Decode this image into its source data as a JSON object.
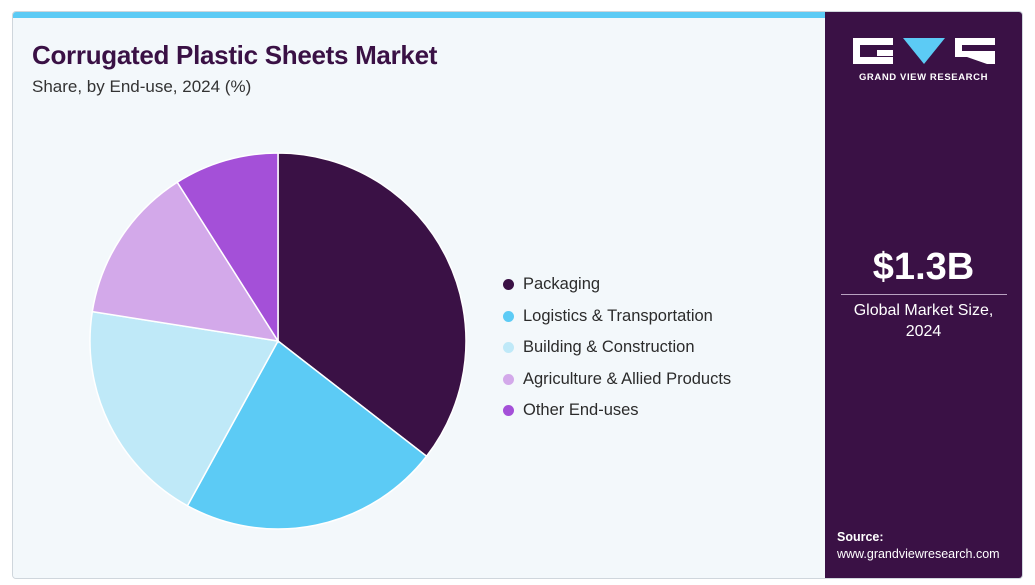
{
  "header": {
    "title": "Corrugated Plastic Sheets Market",
    "subtitle": "Share, by End-use, 2024 (%)"
  },
  "brand": {
    "name": "GRAND VIEW RESEARCH",
    "accent_color": "#5ccbf5",
    "panel_color": "#3a1145"
  },
  "summary": {
    "value": "$1.3B",
    "label_line1": "Global Market Size,",
    "label_line2": "2024"
  },
  "source": {
    "label": "Source:",
    "url": "www.grandviewresearch.com"
  },
  "chart_data": {
    "type": "pie",
    "title": "Corrugated Plastic Sheets Market",
    "subtitle": "Share, by End-use, 2024 (%)",
    "categories": [
      "Packaging",
      "Logistics & Transportation",
      "Building & Construction",
      "Agriculture & Allied Products",
      "Other End-uses"
    ],
    "values": [
      35.5,
      22.5,
      19.5,
      13.5,
      9.0
    ],
    "colors": [
      "#3a1145",
      "#5ccbf5",
      "#bfe9f8",
      "#d3a9ea",
      "#a450d8"
    ],
    "legend_position": "right",
    "start_angle": "12 o'clock",
    "direction": "clockwise"
  }
}
